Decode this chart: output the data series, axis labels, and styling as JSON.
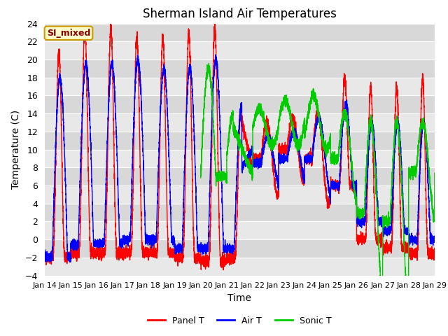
{
  "title": "Sherman Island Air Temperatures",
  "xlabel": "Time",
  "ylabel": "Temperature (C)",
  "ylim": [
    -4,
    24
  ],
  "yticks": [
    -4,
    -2,
    0,
    2,
    4,
    6,
    8,
    10,
    12,
    14,
    16,
    18,
    20,
    22,
    24
  ],
  "xlim_start": 0,
  "xlim_end": 360,
  "x_tick_positions": [
    0,
    24,
    48,
    72,
    96,
    120,
    144,
    168,
    192,
    216,
    240,
    264,
    288,
    312,
    336,
    360
  ],
  "x_tick_labels": [
    "Jan 14",
    "Jan 15",
    "Jan 16",
    "Jan 17",
    "Jan 18",
    "Jan 19",
    "Jan 20",
    "Jan 21",
    "Jan 22",
    "Jan 23",
    "Jan 24",
    "Jan 25",
    "Jan 26",
    "Jan 27",
    "Jan 28",
    "Jan 29"
  ],
  "panel_color": "#ff0000",
  "air_color": "#0000ff",
  "sonic_color": "#00cc00",
  "label_box_color": "#ffffcc",
  "label_box_edge": "#cc9900",
  "label_text": "SI_mixed",
  "label_text_color": "#880000",
  "bg_color": "#ffffff",
  "plot_bg_light": "#e8e8e8",
  "plot_bg_dark": "#d8d8d8",
  "grid_color": "#ffffff",
  "legend_labels": [
    "Panel T",
    "Air T",
    "Sonic T"
  ],
  "linewidth": 1.0
}
